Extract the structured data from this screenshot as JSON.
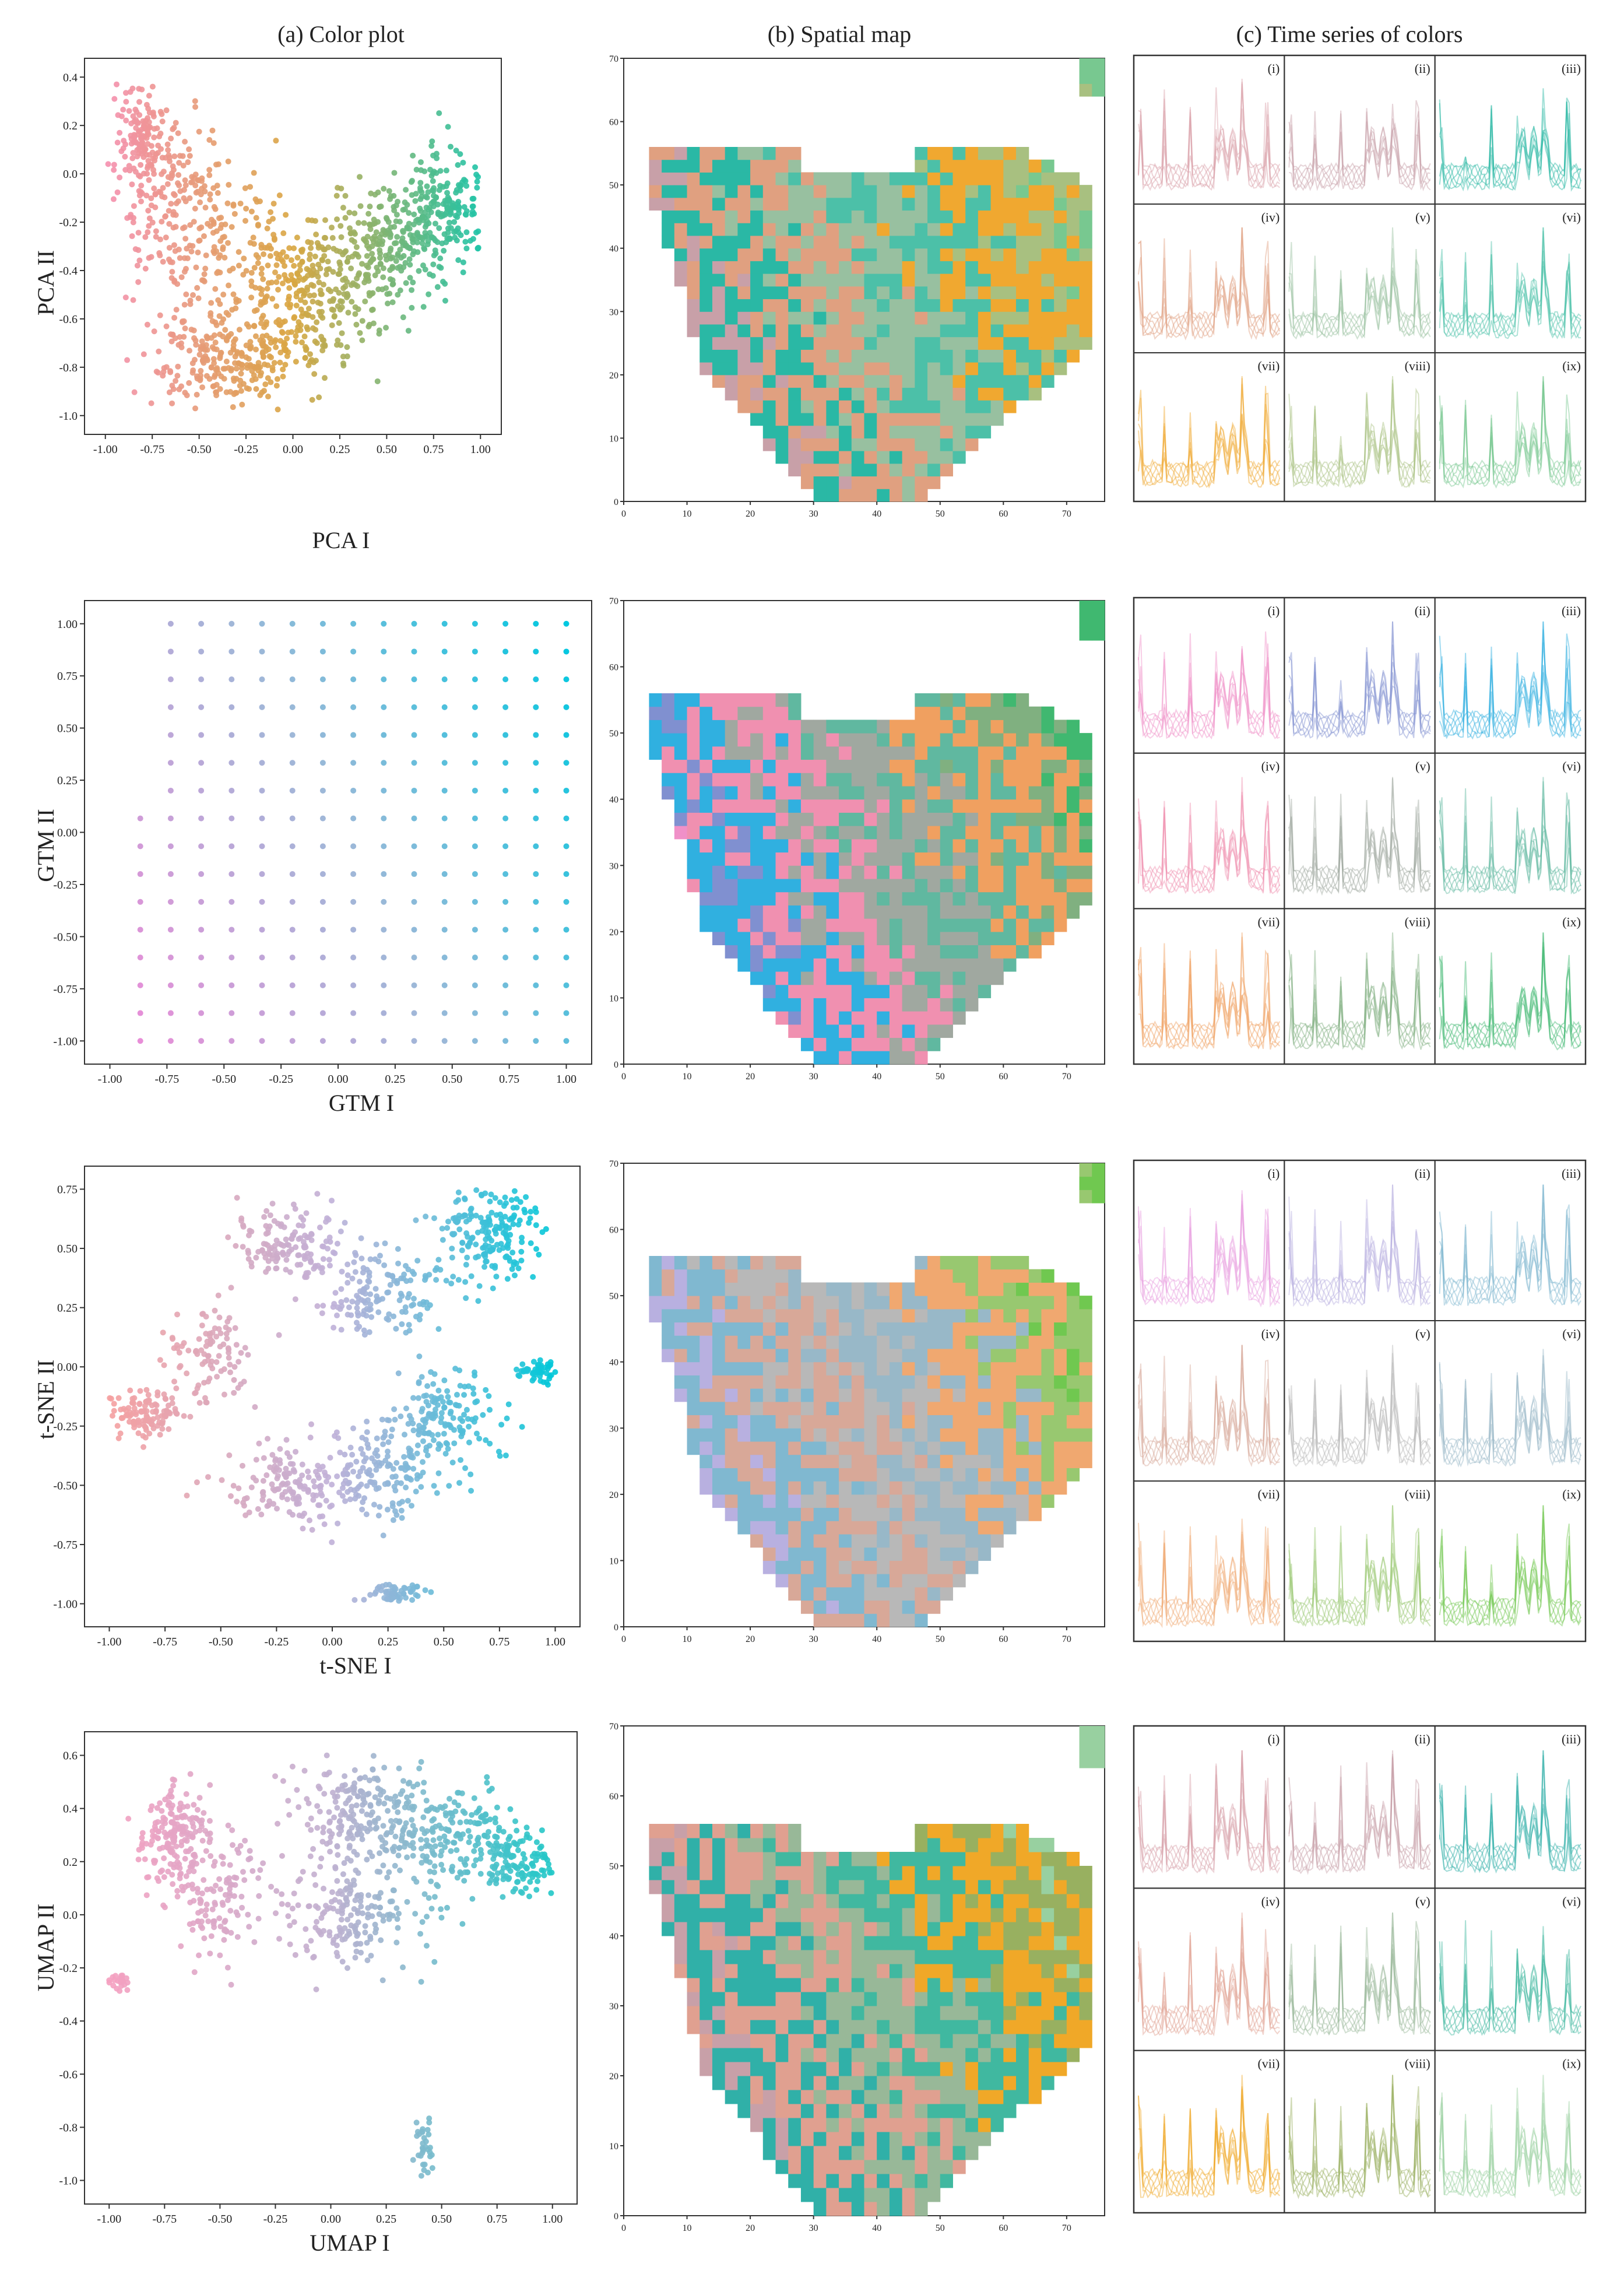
{
  "headers": [
    "(a) Color plot",
    "(b) Spatial map",
    "(c) Time series of colors"
  ],
  "panel_labels": [
    "(i)",
    "(ii)",
    "(iii)",
    "(iv)",
    "(v)",
    "(vi)",
    "(vii)",
    "(viii)",
    "(ix)"
  ],
  "spatial": {
    "xticks": [
      0,
      10,
      20,
      30,
      40,
      50,
      60,
      70
    ],
    "yticks": [
      0,
      10,
      20,
      30,
      40,
      50,
      60,
      70
    ]
  },
  "chart_data": [
    {
      "type": "scatter",
      "method": "PCA",
      "xlabel": "PCA I",
      "ylabel": "PCA II",
      "xlim": [
        -1.0,
        1.0
      ],
      "ylim": [
        -1.0,
        0.4
      ],
      "xticks": [
        "-1.00",
        "-0.75",
        "-0.50",
        "-0.25",
        "0.00",
        "0.25",
        "0.50",
        "0.75",
        "1.00"
      ],
      "yticks": [
        "-1.0",
        "-0.8",
        "-0.6",
        "-0.4",
        "-0.2",
        "0.0",
        "0.2",
        "0.4"
      ],
      "clusters": [
        {
          "x": -0.8,
          "y": 0.15,
          "sx": 0.07,
          "sy": 0.12,
          "n": 150
        },
        {
          "x": -0.6,
          "y": -0.2,
          "sx": 0.15,
          "sy": 0.2,
          "n": 220
        },
        {
          "x": -0.35,
          "y": -0.75,
          "sx": 0.2,
          "sy": 0.1,
          "n": 260
        },
        {
          "x": -0.1,
          "y": -0.45,
          "sx": 0.18,
          "sy": 0.2,
          "n": 200
        },
        {
          "x": 0.2,
          "y": -0.5,
          "sx": 0.15,
          "sy": 0.15,
          "n": 150
        },
        {
          "x": 0.5,
          "y": -0.3,
          "sx": 0.15,
          "sy": 0.12,
          "n": 200
        },
        {
          "x": 0.8,
          "y": -0.15,
          "sx": 0.12,
          "sy": 0.12,
          "n": 220
        }
      ],
      "palette": {
        "left": "#f58fb0",
        "mid": "#d9a640",
        "right": "#1fc4a8"
      },
      "timeseries_colors": [
        "#d9a0a8",
        "#c8a0a8",
        "#2ab8a5",
        "#e0a080",
        "#98c0a0",
        "#4cc0a8",
        "#f0a830",
        "#a8c080",
        "#78c890"
      ]
    },
    {
      "type": "scatter",
      "method": "GTM",
      "xlabel": "GTM I",
      "ylabel": "GTM II",
      "xlim": [
        -1.0,
        1.0
      ],
      "ylim": [
        -1.0,
        1.0
      ],
      "xticks": [
        "-1.00",
        "-0.75",
        "-0.50",
        "-0.25",
        "0.00",
        "0.25",
        "0.50",
        "0.75",
        "1.00"
      ],
      "yticks": [
        "-1.00",
        "-0.75",
        "-0.50",
        "-0.25",
        "0.00",
        "0.25",
        "0.50",
        "0.75",
        "1.00"
      ],
      "grid_points": true,
      "palette": {
        "left": "#f08ad8",
        "mid": "#9fb8d8",
        "right": "#00c8e0"
      },
      "timeseries_colors": [
        "#f090c8",
        "#8090d0",
        "#30b0e0",
        "#f090b0",
        "#a0a8a0",
        "#60b8a0",
        "#f0a060",
        "#80b080",
        "#40b870"
      ]
    },
    {
      "type": "scatter",
      "method": "t-SNE",
      "xlabel": "t-SNE I",
      "ylabel": "t-SNE II",
      "xlim": [
        -1.0,
        1.0
      ],
      "ylim": [
        -1.0,
        0.75
      ],
      "xticks": [
        "-1.00",
        "-0.75",
        "-0.50",
        "-0.25",
        "0.00",
        "0.25",
        "0.50",
        "0.75",
        "1.00"
      ],
      "yticks": [
        "-1.00",
        "-0.75",
        "-0.50",
        "-0.25",
        "0.00",
        "0.25",
        "0.50",
        "0.75"
      ],
      "clusters": [
        {
          "x": -0.85,
          "y": -0.2,
          "sx": 0.08,
          "sy": 0.05,
          "n": 120
        },
        {
          "x": -0.55,
          "y": 0.05,
          "sx": 0.1,
          "sy": 0.1,
          "n": 100
        },
        {
          "x": -0.2,
          "y": 0.5,
          "sx": 0.12,
          "sy": 0.08,
          "n": 140
        },
        {
          "x": 0.2,
          "y": 0.3,
          "sx": 0.15,
          "sy": 0.1,
          "n": 150
        },
        {
          "x": 0.7,
          "y": 0.55,
          "sx": 0.12,
          "sy": 0.12,
          "n": 200
        },
        {
          "x": -0.2,
          "y": -0.5,
          "sx": 0.15,
          "sy": 0.08,
          "n": 150
        },
        {
          "x": 0.2,
          "y": -0.45,
          "sx": 0.15,
          "sy": 0.1,
          "n": 150
        },
        {
          "x": 0.5,
          "y": -0.2,
          "sx": 0.12,
          "sy": 0.1,
          "n": 150
        },
        {
          "x": 0.92,
          "y": -0.02,
          "sx": 0.05,
          "sy": 0.03,
          "n": 50
        },
        {
          "x": 0.28,
          "y": -0.95,
          "sx": 0.08,
          "sy": 0.02,
          "n": 60
        }
      ],
      "palette": {
        "left": "#f5a0a0",
        "mid": "#c0b0d8",
        "right": "#00c8d8"
      },
      "timeseries_colors": [
        "#e8a0e0",
        "#b8b0e0",
        "#80b8d0",
        "#d8a898",
        "#b8b8b8",
        "#98b8c8",
        "#f0a870",
        "#98c870",
        "#70c850"
      ]
    },
    {
      "type": "scatter",
      "method": "UMAP",
      "xlabel": "UMAP I",
      "ylabel": "UMAP II",
      "xlim": [
        -1.0,
        1.0
      ],
      "ylim": [
        -1.0,
        0.6
      ],
      "xticks": [
        "-1.00",
        "-0.75",
        "-0.50",
        "-0.25",
        "0.00",
        "0.25",
        "0.50",
        "0.75",
        "1.00"
      ],
      "yticks": [
        "-1.0",
        "-0.8",
        "-0.6",
        "-0.4",
        "-0.2",
        "0.0",
        "0.2",
        "0.4",
        "0.6"
      ],
      "clusters": [
        {
          "x": -0.7,
          "y": 0.3,
          "sx": 0.08,
          "sy": 0.1,
          "n": 180
        },
        {
          "x": -0.5,
          "y": 0.05,
          "sx": 0.1,
          "sy": 0.1,
          "n": 120
        },
        {
          "x": 0.1,
          "y": 0.4,
          "sx": 0.15,
          "sy": 0.1,
          "n": 200
        },
        {
          "x": 0.5,
          "y": 0.3,
          "sx": 0.15,
          "sy": 0.1,
          "n": 200
        },
        {
          "x": 0.85,
          "y": 0.2,
          "sx": 0.1,
          "sy": 0.06,
          "n": 150
        },
        {
          "x": 0.1,
          "y": 0.0,
          "sx": 0.15,
          "sy": 0.1,
          "n": 180
        },
        {
          "x": -0.95,
          "y": -0.25,
          "sx": 0.03,
          "sy": 0.02,
          "n": 25
        },
        {
          "x": 0.42,
          "y": -0.88,
          "sx": 0.02,
          "sy": 0.07,
          "n": 35
        }
      ],
      "palette": {
        "left": "#f5a0c0",
        "mid": "#c0b0d0",
        "right": "#20c8c8"
      },
      "timeseries_colors": [
        "#d8a0a8",
        "#c8a0a8",
        "#30b0a8",
        "#e0a090",
        "#98b898",
        "#40b8a0",
        "#f0a828",
        "#98b060",
        "#98d0a0"
      ]
    }
  ]
}
